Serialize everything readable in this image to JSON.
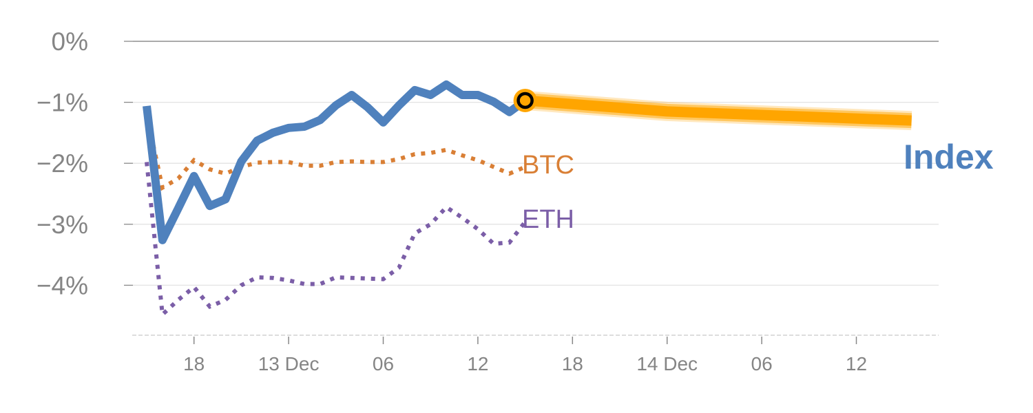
{
  "chart_data": {
    "type": "line",
    "title": "",
    "xlabel": "",
    "ylabel": "",
    "x_unit": "hours since first point",
    "ylim": [
      -4.82,
      0
    ],
    "yticks": [
      0,
      -1,
      -2,
      -3,
      -4
    ],
    "ytick_labels": [
      "0%",
      "−1%",
      "−2%",
      "−3%",
      "−4%"
    ],
    "xticks": [
      3,
      9,
      15,
      21,
      27,
      33,
      39,
      45
    ],
    "xtick_labels": [
      "18",
      "13 Dec",
      "06",
      "12",
      "18",
      "14 Dec",
      "06",
      "12"
    ],
    "grid": true,
    "series": [
      {
        "name": "Index",
        "label": "Index",
        "style": "solid",
        "color": "#4f81bd",
        "x": [
          0,
          1,
          2,
          3,
          4,
          5,
          6,
          7,
          8,
          9,
          10,
          11,
          12,
          13,
          14,
          15,
          16,
          17,
          18,
          19,
          20,
          21,
          22,
          23,
          24
        ],
        "values": [
          -1.06,
          -3.26,
          -2.74,
          -2.21,
          -2.7,
          -2.59,
          -1.97,
          -1.63,
          -1.5,
          -1.42,
          -1.4,
          -1.29,
          -1.05,
          -0.88,
          -1.08,
          -1.33,
          -1.05,
          -0.8,
          -0.88,
          -0.71,
          -0.88,
          -0.88,
          -0.99,
          -1.16,
          -0.97
        ]
      },
      {
        "name": "BTC",
        "label": "BTC",
        "style": "dotted",
        "color": "#d97f35",
        "x": [
          0,
          1,
          2,
          3,
          4,
          5,
          6,
          7,
          8,
          9,
          10,
          11,
          12,
          13,
          14,
          15,
          16,
          17,
          18,
          19,
          20,
          21,
          22,
          23,
          24
        ],
        "values": [
          -1.2,
          -2.4,
          -2.25,
          -1.95,
          -2.1,
          -2.17,
          -2.06,
          -1.99,
          -1.98,
          -1.98,
          -2.04,
          -2.04,
          -1.98,
          -1.97,
          -1.98,
          -1.98,
          -1.93,
          -1.85,
          -1.83,
          -1.78,
          -1.87,
          -1.95,
          -2.06,
          -2.17,
          -2.06
        ]
      },
      {
        "name": "ETH",
        "label": "ETH",
        "style": "dotted",
        "color": "#7b5ea7",
        "x": [
          0,
          1,
          2,
          3,
          4,
          5,
          6,
          7,
          8,
          9,
          10,
          11,
          12,
          13,
          14,
          15,
          16,
          17,
          18,
          19,
          20,
          21,
          22,
          23,
          24
        ],
        "values": [
          -1.98,
          -4.48,
          -4.24,
          -4.03,
          -4.35,
          -4.24,
          -4.0,
          -3.87,
          -3.88,
          -3.92,
          -3.98,
          -3.98,
          -3.87,
          -3.88,
          -3.89,
          -3.9,
          -3.71,
          -3.15,
          -3.0,
          -2.72,
          -2.89,
          -3.08,
          -3.32,
          -3.3,
          -2.96
        ]
      },
      {
        "name": "Index forecast",
        "style": "thick-band",
        "color": "#ffa500",
        "x": [
          24,
          33,
          48.5
        ],
        "values": [
          -0.97,
          -1.15,
          -1.3
        ]
      }
    ],
    "current_point": {
      "x": 24,
      "value": -0.97,
      "color": "#ffa500"
    }
  }
}
